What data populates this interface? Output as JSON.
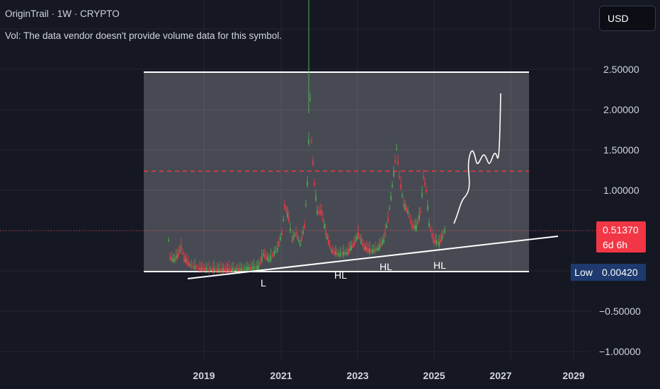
{
  "legend": {
    "title": "OriginTrail · 1W · CRYPTO",
    "volume_note": "Vol: The data vendor doesn't provide volume data for this symbol."
  },
  "currency_button": "USD",
  "price_axis": {
    "ticks": [
      "2.50000",
      "2.00000",
      "1.50000",
      "1.00000",
      "−0.50000",
      "−1.00000"
    ]
  },
  "time_axis": {
    "ticks": [
      "2019",
      "2021",
      "2023",
      "2025",
      "2027",
      "2029"
    ]
  },
  "last_price": {
    "value": "0.51370",
    "countdown": "6d 6h"
  },
  "low_marker": {
    "label": "Low",
    "value": "0.00420"
  },
  "annotations": [
    "L",
    "HL",
    "HL",
    "HL"
  ],
  "colors": {
    "background": "#151823",
    "candle_up": "#4caf50",
    "candle_down": "#f23645",
    "resistance_line": "#f23645",
    "box_fill": "#ffffff",
    "trendline": "#ffffff"
  }
}
